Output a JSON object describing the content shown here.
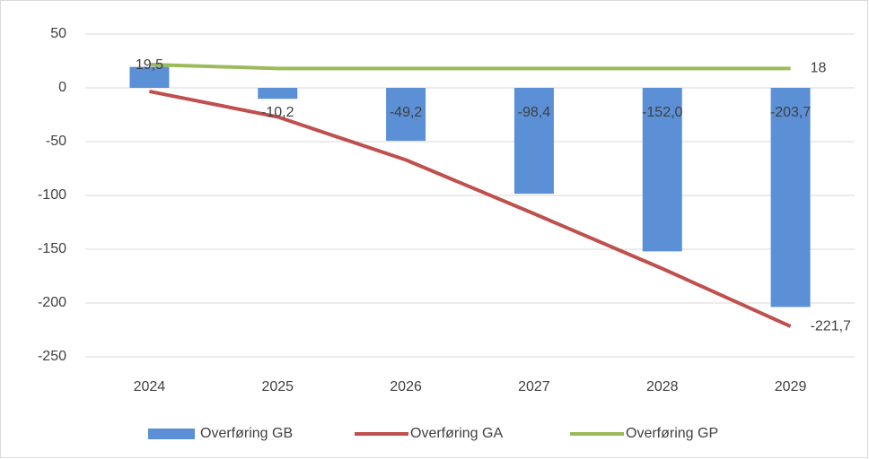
{
  "chart_data": {
    "type": "combo",
    "categories": [
      "2024",
      "2025",
      "2026",
      "2027",
      "2028",
      "2029"
    ],
    "series": [
      {
        "name": "Overføring GB",
        "type": "bar",
        "color": "#5b8fd6",
        "values": [
          19.5,
          -10.2,
          -49.2,
          -98.4,
          -152.0,
          -203.7
        ],
        "value_labels": [
          "19,5",
          "-10,2",
          "-49,2",
          "-98,4",
          "-152,0",
          "-203,7"
        ]
      },
      {
        "name": "Overføring GA",
        "type": "line",
        "color": "#c0504d",
        "values": [
          -3.3,
          -27,
          -67,
          -117,
          -168,
          -221.7
        ],
        "value_labels": [
          null,
          null,
          null,
          null,
          null,
          "-221,7"
        ]
      },
      {
        "name": "Overføring GP",
        "type": "line",
        "color": "#9bbb59",
        "values": [
          21.7,
          18,
          18,
          18,
          18,
          18
        ],
        "value_labels": [
          null,
          null,
          null,
          null,
          null,
          "18"
        ]
      }
    ],
    "ylim": [
      -250,
      50
    ],
    "yticks": [
      -250,
      -200,
      -150,
      -100,
      -50,
      0,
      50
    ],
    "grid": true,
    "legend": "bottom"
  }
}
